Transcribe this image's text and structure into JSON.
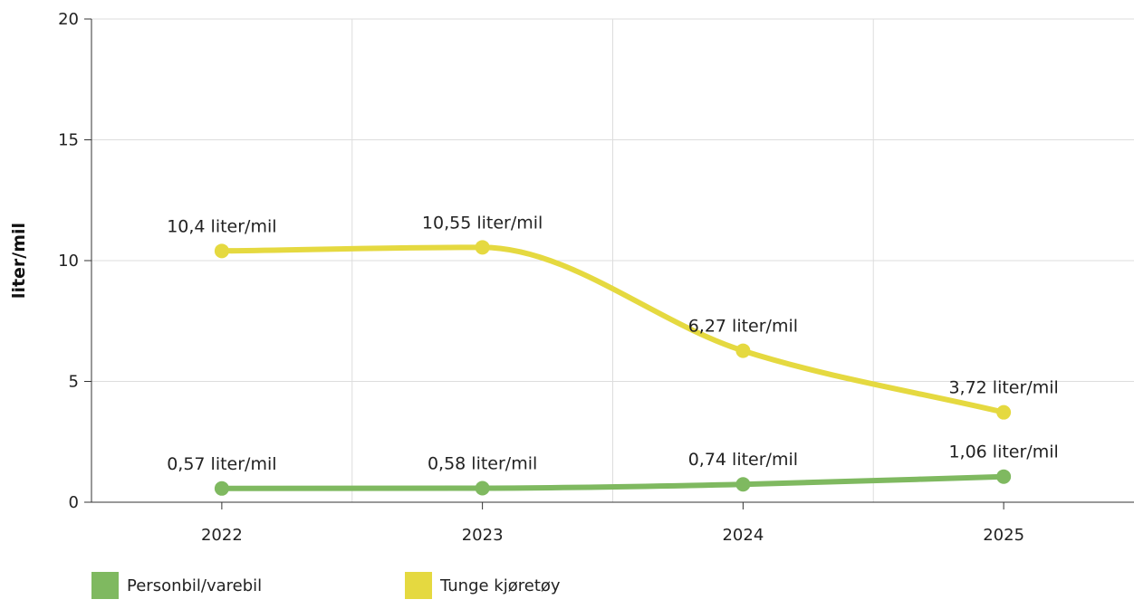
{
  "chart_data": {
    "type": "line",
    "title": "",
    "xlabel": "",
    "ylabel": "liter/mil",
    "x": [
      "2022",
      "2023",
      "2024",
      "2025"
    ],
    "ylim": [
      0,
      20
    ],
    "yticks": [
      0,
      5,
      10,
      15,
      20
    ],
    "grid": true,
    "legend_position": "bottom-left",
    "smooth": true,
    "series": [
      {
        "name": "Personbil/varebil",
        "color": "#7fb960",
        "values": [
          0.57,
          0.58,
          0.74,
          1.06
        ],
        "labels": [
          "0,57 liter/mil",
          "0,58 liter/mil",
          "0,74 liter/mil",
          "1,06 liter/mil"
        ]
      },
      {
        "name": "Tunge kjøretøy",
        "color": "#e5d940",
        "values": [
          10.4,
          10.55,
          6.27,
          3.72
        ],
        "labels": [
          "10,4 liter/mil",
          "10,55 liter/mil",
          "6,27 liter/mil",
          "3,72 liter/mil"
        ]
      }
    ]
  }
}
